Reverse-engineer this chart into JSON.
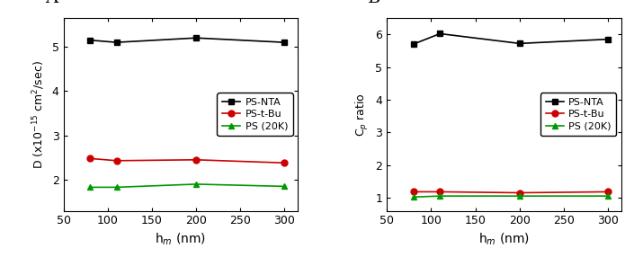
{
  "x": [
    80,
    110,
    200,
    300
  ],
  "panel_A": {
    "title": "A",
    "PS_NTA": [
      5.15,
      5.1,
      5.2,
      5.1
    ],
    "PS_t_Bu": [
      2.48,
      2.43,
      2.45,
      2.38
    ],
    "PS_20K": [
      1.83,
      1.83,
      1.9,
      1.85
    ],
    "ylabel": "D (x10$^{-15}$ cm$^2$/sec)",
    "xlabel": "h$_m$ (nm)",
    "ylim": [
      1.3,
      5.65
    ],
    "yticks": [
      2,
      3,
      4,
      5
    ],
    "xlim": [
      50,
      315
    ],
    "xticks": [
      50,
      100,
      150,
      200,
      250,
      300
    ]
  },
  "panel_B": {
    "title": "B",
    "PS_NTA": [
      5.7,
      6.02,
      5.72,
      5.85
    ],
    "PS_t_Bu": [
      1.18,
      1.18,
      1.15,
      1.18
    ],
    "PS_20K": [
      1.02,
      1.05,
      1.05,
      1.05
    ],
    "ylabel": "C$_p$ ratio",
    "xlabel": "h$_m$ (nm)",
    "ylim": [
      0.6,
      6.5
    ],
    "yticks": [
      1,
      2,
      3,
      4,
      5,
      6
    ],
    "xlim": [
      50,
      315
    ],
    "xticks": [
      50,
      100,
      150,
      200,
      250,
      300
    ]
  },
  "legend_labels": [
    "PS-NTA",
    "PS-t-Bu",
    "PS (20K)"
  ],
  "colors": {
    "PS_NTA": "#000000",
    "PS_t_Bu": "#cc0000",
    "PS_20K": "#009900"
  },
  "markers": {
    "PS_NTA": "s",
    "PS_t_Bu": "o",
    "PS_20K": "^"
  },
  "xtick_labels": [
    "50",
    "100",
    "150",
    "200",
    "250",
    "300"
  ]
}
